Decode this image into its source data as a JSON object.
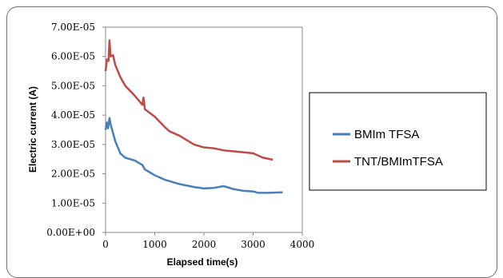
{
  "chart_data": {
    "type": "line",
    "title": "",
    "xlabel": "Elapsed time(s)",
    "ylabel": "Electric current (A)",
    "xlim": [
      0,
      4000
    ],
    "ylim": [
      0,
      7e-05
    ],
    "x_ticks": [
      0,
      1000,
      2000,
      3000,
      4000
    ],
    "x_tick_labels": [
      "0",
      "1000",
      "2000",
      "3000",
      "4000"
    ],
    "y_ticks": [
      0,
      1e-05,
      2e-05,
      3e-05,
      4e-05,
      5e-05,
      6e-05,
      7e-05
    ],
    "y_tick_labels": [
      "0.00E+00",
      "1.00E-05",
      "2.00E-05",
      "3.00E-05",
      "4.00E-05",
      "5.00E-05",
      "6.00E-05",
      "7.00E-05"
    ],
    "grid": false,
    "legend_position": "right",
    "series": [
      {
        "name": "BMIm TFSA",
        "color": "#4a7ebb",
        "points": [
          [
            0,
            3.5e-05
          ],
          [
            30,
            3.75e-05
          ],
          [
            50,
            3.55e-05
          ],
          [
            80,
            3.9e-05
          ],
          [
            100,
            3.7e-05
          ],
          [
            150,
            3.4e-05
          ],
          [
            200,
            3.1e-05
          ],
          [
            300,
            2.7e-05
          ],
          [
            400,
            2.55e-05
          ],
          [
            600,
            2.45e-05
          ],
          [
            750,
            2.3e-05
          ],
          [
            800,
            2.15e-05
          ],
          [
            1000,
            1.95e-05
          ],
          [
            1200,
            1.8e-05
          ],
          [
            1500,
            1.65e-05
          ],
          [
            1800,
            1.55e-05
          ],
          [
            2000,
            1.5e-05
          ],
          [
            2200,
            1.52e-05
          ],
          [
            2400,
            1.58e-05
          ],
          [
            2600,
            1.48e-05
          ],
          [
            2800,
            1.42e-05
          ],
          [
            3000,
            1.4e-05
          ],
          [
            3100,
            1.35e-05
          ],
          [
            3300,
            1.35e-05
          ],
          [
            3600,
            1.37e-05
          ]
        ]
      },
      {
        "name": "TNT/BMImTFSA",
        "color": "#be4b48",
        "points": [
          [
            0,
            5.5e-05
          ],
          [
            30,
            5.9e-05
          ],
          [
            60,
            5.85e-05
          ],
          [
            80,
            6.55e-05
          ],
          [
            100,
            6e-05
          ],
          [
            150,
            6.05e-05
          ],
          [
            200,
            5.7e-05
          ],
          [
            300,
            5.3e-05
          ],
          [
            400,
            5e-05
          ],
          [
            600,
            4.65e-05
          ],
          [
            750,
            4.35e-05
          ],
          [
            770,
            4.6e-05
          ],
          [
            800,
            4.2e-05
          ],
          [
            1000,
            3.95e-05
          ],
          [
            1200,
            3.6e-05
          ],
          [
            1300,
            3.45e-05
          ],
          [
            1500,
            3.3e-05
          ],
          [
            1800,
            3e-05
          ],
          [
            2000,
            2.9e-05
          ],
          [
            2200,
            2.87e-05
          ],
          [
            2400,
            2.8e-05
          ],
          [
            2700,
            2.75e-05
          ],
          [
            3000,
            2.7e-05
          ],
          [
            3200,
            2.55e-05
          ],
          [
            3400,
            2.48e-05
          ]
        ]
      }
    ]
  }
}
